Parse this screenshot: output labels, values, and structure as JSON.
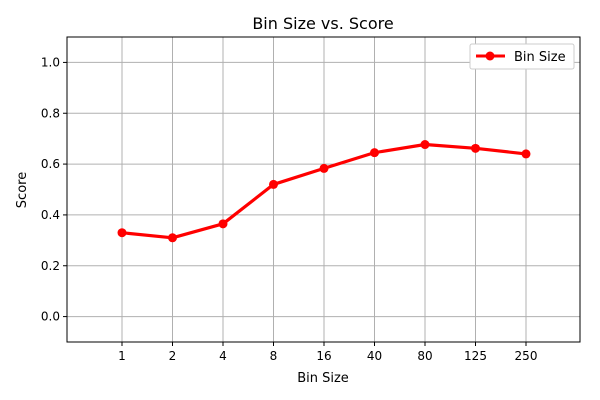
{
  "chart_data": {
    "type": "line",
    "title": "Bin Size vs. Score",
    "xlabel": "Bin Size",
    "ylabel": "Score",
    "categories": [
      "1",
      "2",
      "4",
      "8",
      "16",
      "40",
      "80",
      "125",
      "250"
    ],
    "ylim": [
      -0.1,
      1.1
    ],
    "yticks": [
      "0.0",
      "0.2",
      "0.4",
      "0.6",
      "0.8",
      "1.0"
    ],
    "grid": true,
    "legend_position": "top-right",
    "series": [
      {
        "name": "Bin Size",
        "color": "#ff0000",
        "marker": "circle",
        "values": [
          0.33,
          0.31,
          0.365,
          0.52,
          0.583,
          0.645,
          0.677,
          0.662,
          0.64
        ]
      }
    ]
  }
}
